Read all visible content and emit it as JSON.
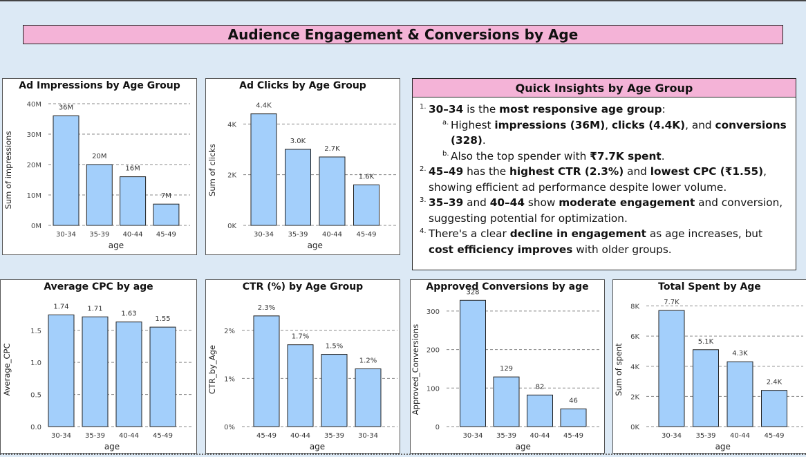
{
  "page_title": "Audience Engagement & Conversions by Age",
  "insights": {
    "title": "Quick Insights by Age Group",
    "i1": {
      "n": "1.",
      "a": "30–34",
      "b": " is the ",
      "c": "most responsive age group",
      "d": ":"
    },
    "i1a": {
      "n": "a.",
      "a": "Highest ",
      "b": "impressions (36M)",
      "c": ", ",
      "d": "clicks (4.4K)",
      "e": ", and ",
      "f": "conversions (328)",
      "g": "."
    },
    "i1b": {
      "n": "b.",
      "a": "Also the top spender with ",
      "b": "₹7.7K spent",
      "c": "."
    },
    "i2": {
      "n": "2.",
      "a": "45–49",
      "b": " has the ",
      "c": "highest CTR (2.3%)",
      "d": " and ",
      "e": "lowest CPC (₹1.55)",
      "f": ", showing efficient ad performance despite lower volume."
    },
    "i3": {
      "n": "3.",
      "a": "35–39",
      "b": " and ",
      "c": "40–44",
      "d": " show ",
      "e": "moderate engagement",
      "f": " and conversion, suggesting potential for optimization."
    },
    "i4": {
      "n": "4.",
      "a": "There's a clear ",
      "b": "decline in engagement",
      "c": " as age increases, but ",
      "d": "cost efficiency improves",
      "e": " with older groups."
    }
  },
  "bar_color": "#a3cffb",
  "chart_data": [
    {
      "id": "impressions",
      "type": "bar",
      "title": "Ad Impressions by Age Group",
      "xlabel": "age",
      "ylabel": "Sum of impressions",
      "categories": [
        "30-34",
        "35-39",
        "40-44",
        "45-49"
      ],
      "values": [
        36,
        20,
        16,
        7
      ],
      "labels": [
        "36M",
        "20M",
        "16M",
        "7M"
      ],
      "ylim": [
        0,
        40
      ],
      "yticks": [
        0,
        10,
        20,
        30,
        40
      ],
      "yticklabels": [
        "0M",
        "10M",
        "20M",
        "30M",
        "40M"
      ],
      "grid": true
    },
    {
      "id": "clicks",
      "type": "bar",
      "title": "Ad Clicks by Age Group",
      "xlabel": "age",
      "ylabel": "Sum of clicks",
      "categories": [
        "30-34",
        "35-39",
        "40-44",
        "45-49"
      ],
      "values": [
        4.4,
        3.0,
        2.7,
        1.6
      ],
      "labels": [
        "4.4K",
        "3.0K",
        "2.7K",
        "1.6K"
      ],
      "ylim": [
        0,
        4.8
      ],
      "yticks": [
        0,
        2,
        4
      ],
      "yticklabels": [
        "0K",
        "2K",
        "4K"
      ],
      "grid": true
    },
    {
      "id": "cpc",
      "type": "bar",
      "title": "Average CPC by age",
      "xlabel": "age",
      "ylabel": "Average_CPC",
      "categories": [
        "30-34",
        "35-39",
        "40-44",
        "45-49"
      ],
      "values": [
        1.74,
        1.71,
        1.63,
        1.55
      ],
      "labels": [
        "1.74",
        "1.71",
        "1.63",
        "1.55"
      ],
      "ylim": [
        0,
        1.95
      ],
      "yticks": [
        0,
        0.5,
        1.0,
        1.5
      ],
      "yticklabels": [
        "0.0",
        "0.5",
        "1.0",
        "1.5"
      ],
      "grid": true
    },
    {
      "id": "ctr",
      "type": "bar",
      "title": "CTR (%) by Age Group",
      "xlabel": "age",
      "ylabel": "CTR_by_Age",
      "categories": [
        "45-49",
        "40-44",
        "35-39",
        "30-34"
      ],
      "values": [
        2.3,
        1.7,
        1.5,
        1.2
      ],
      "labels": [
        "2.3%",
        "1.7%",
        "1.5%",
        "1.2%"
      ],
      "ylim": [
        0,
        2.6
      ],
      "yticks": [
        0,
        1,
        2
      ],
      "yticklabels": [
        "0%",
        "1%",
        "2%"
      ],
      "grid": true
    },
    {
      "id": "conversions",
      "type": "bar",
      "title": "Approved Conversions by age",
      "xlabel": "age",
      "ylabel": "Approved_Conversions",
      "categories": [
        "30-34",
        "35-39",
        "40-44",
        "45-49"
      ],
      "values": [
        328,
        129,
        82,
        46
      ],
      "labels": [
        "328",
        "129",
        "82",
        "46"
      ],
      "ylim": [
        0,
        325
      ],
      "yticks": [
        0,
        100,
        200,
        300
      ],
      "yticklabels": [
        "0",
        "100",
        "200",
        "300"
      ],
      "grid": true
    },
    {
      "id": "spent",
      "type": "bar",
      "title": "Total Spent by Age",
      "xlabel": "age",
      "ylabel": "Sum of spent",
      "categories": [
        "30-34",
        "35-39",
        "40-44",
        "45-49"
      ],
      "values": [
        7.7,
        5.1,
        4.3,
        2.4
      ],
      "labels": [
        "7.7K",
        "5.1K",
        "4.3K",
        "2.4K"
      ],
      "ylim": [
        0,
        8.3
      ],
      "yticks": [
        0,
        2,
        4,
        6,
        8
      ],
      "yticklabels": [
        "0K",
        "2K",
        "4K",
        "6K",
        "8K"
      ],
      "grid": true
    }
  ]
}
